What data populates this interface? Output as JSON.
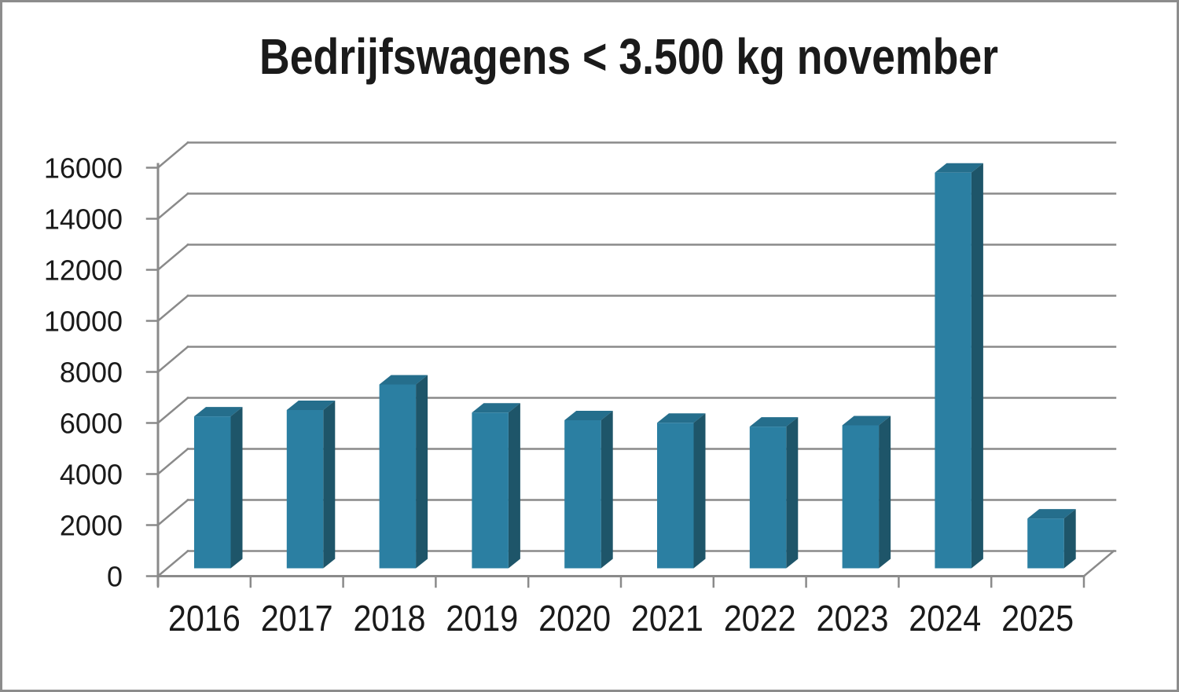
{
  "chart_data": {
    "type": "bar",
    "style": "3d-column",
    "title": "Bedrijfswagens < 3.500 kg november",
    "categories": [
      "2016",
      "2017",
      "2018",
      "2019",
      "2020",
      "2021",
      "2022",
      "2023",
      "2024",
      "2025"
    ],
    "values": [
      5950,
      6200,
      7200,
      6100,
      5800,
      5700,
      5550,
      5600,
      15500,
      1950
    ],
    "xlabel": "",
    "ylabel": "",
    "ylim": [
      0,
      16000
    ],
    "ytick_step": 2000,
    "y_tick_labels": [
      "0",
      "2000",
      "4000",
      "6000",
      "8000",
      "10000",
      "12000",
      "14000",
      "16000"
    ],
    "grid": "on",
    "legend": "none",
    "colors": {
      "bar_front": "#2b7fa2",
      "bar_top": "#256e8c",
      "bar_side": "#1e5569",
      "gridline": "#8a8a8a",
      "axis": "#8a8a8a",
      "text": "#1a1a1a",
      "background": "#ffffff",
      "page_border": "#8c8c8c"
    }
  }
}
